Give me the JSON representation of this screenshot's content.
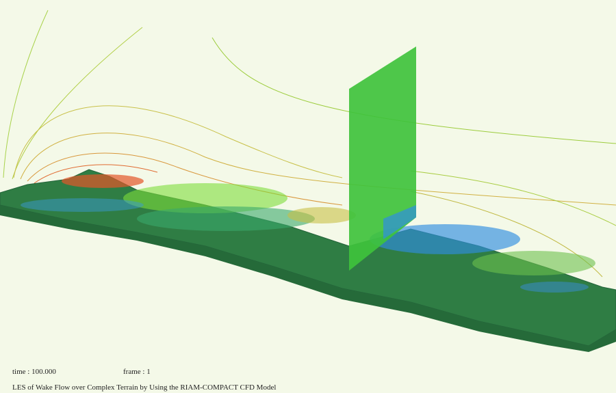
{
  "overlay": {
    "time": "time : 100.000",
    "frame": "frame : 1"
  },
  "caption": "LES of Wake Flow over Complex Terrain by Using the RIAM-COMPACT CFD Model"
}
